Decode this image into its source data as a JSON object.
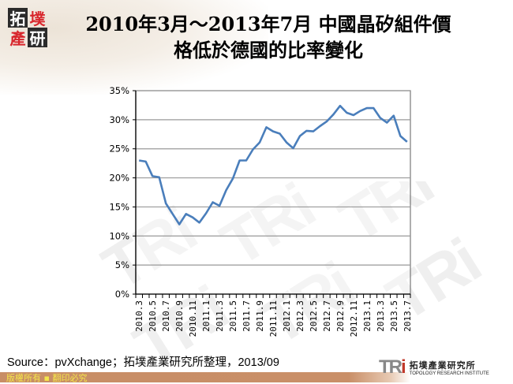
{
  "logo": {
    "chars": [
      "拓",
      "墣",
      "產",
      "研"
    ]
  },
  "title": {
    "line1": "2010年3月～2013年7月 中國晶矽組件價",
    "line2": "格低於德國的比率變化"
  },
  "source": "Source：pvXchange；拓墣產業研究所整理，2013/09",
  "footer": {
    "copyright": "版權所有 ▪ 翻印必究",
    "org_mark": "TRi",
    "org_name_cn": "拓墣產業研究所",
    "org_name_en": "TOPOLOGY RESEARCH INSTITUTE"
  },
  "watermark": "TRi",
  "colors": {
    "line": "#4a7ebb",
    "grid": "#999999",
    "axis": "#000000",
    "footer_bar": "#c88e66",
    "copyright_text": "#f4e64a"
  },
  "chart_data": {
    "type": "line",
    "title": "2010年3月～2013年7月 中國晶矽組件價格低於德國的比率變化",
    "xlabel": "",
    "ylabel": "",
    "ylim": [
      0,
      35
    ],
    "yticks": [
      "0%",
      "5%",
      "10%",
      "15%",
      "20%",
      "25%",
      "30%",
      "35%"
    ],
    "grid": true,
    "legend": "none",
    "x": [
      "2010.3",
      "2010.4",
      "2010.5",
      "2010.6",
      "2010.7",
      "2010.8",
      "2010.9",
      "2010.10",
      "2010.11",
      "2010.12",
      "2011.1",
      "2011.2",
      "2011.3",
      "2011.4",
      "2011.5",
      "2011.6",
      "2011.7",
      "2011.8",
      "2011.9",
      "2011.10",
      "2011.11",
      "2011.12",
      "2012.1",
      "2012.2",
      "2012.3",
      "2012.4",
      "2012.5",
      "2012.6",
      "2012.7",
      "2012.8",
      "2012.9",
      "2012.10",
      "2012.11",
      "2012.12",
      "2013.1",
      "2013.2",
      "2013.3",
      "2013.4",
      "2013.5",
      "2013.6",
      "2013.7"
    ],
    "x_tick_labels": [
      "2010.3",
      "2010.5",
      "2010.7",
      "2010.9",
      "2010.11",
      "2011.1",
      "2011.3",
      "2011.5",
      "2011.7",
      "2011.9",
      "2011.11",
      "2012.1",
      "2012.3",
      "2012.5",
      "2012.7",
      "2012.9",
      "2012.11",
      "2013.1",
      "2013.3",
      "2013.5",
      "2013.7"
    ],
    "series": [
      {
        "name": "比率",
        "values": [
          23.0,
          22.8,
          20.3,
          20.1,
          15.6,
          13.8,
          12.0,
          13.8,
          13.2,
          12.3,
          13.9,
          15.8,
          15.2,
          17.9,
          19.9,
          23.0,
          23.0,
          24.9,
          26.1,
          28.7,
          28.0,
          27.6,
          26.1,
          25.1,
          27.2,
          28.1,
          28.0,
          28.9,
          29.7,
          30.9,
          32.4,
          31.2,
          30.8,
          31.5,
          32.0,
          32.0,
          30.3,
          29.5,
          30.7,
          27.2,
          26.2
        ]
      }
    ]
  }
}
